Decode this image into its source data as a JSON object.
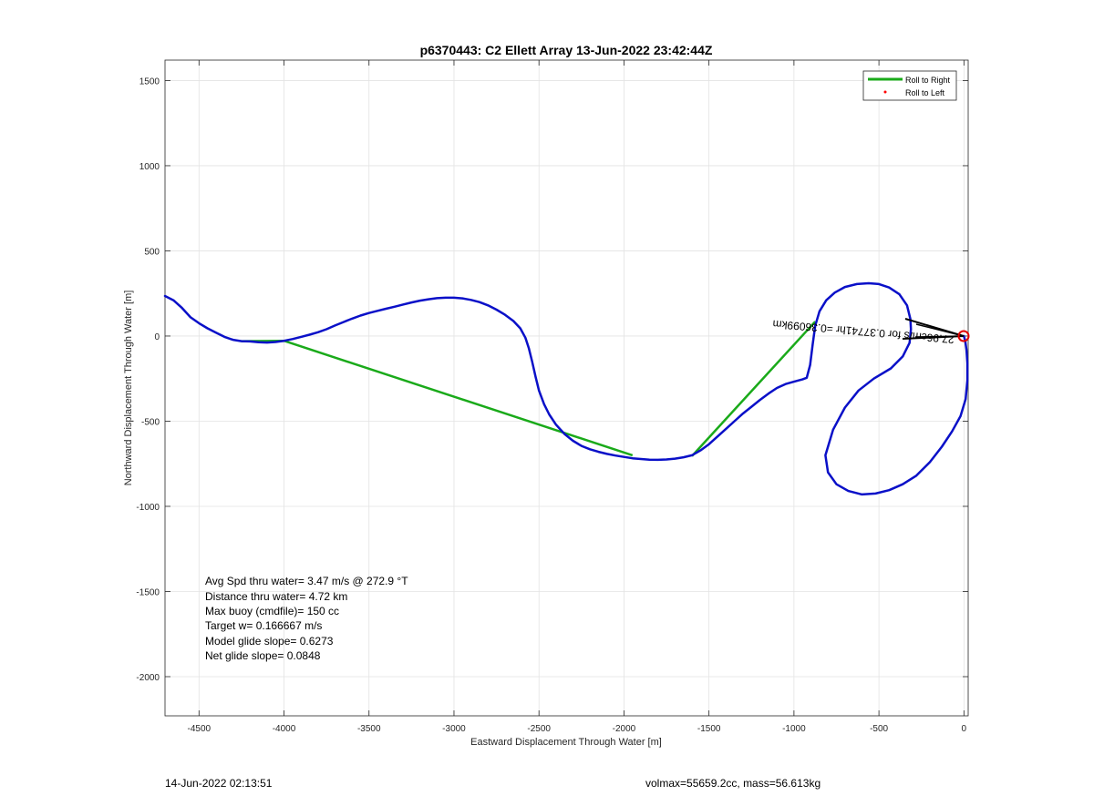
{
  "chart_data": {
    "type": "line",
    "title": "p6370443: C2 Ellett Array 13-Jun-2022 23:42:44Z",
    "xlabel": "Eastward Displacement Through Water [m]",
    "ylabel": "Northward Displacement Through Water [m]",
    "xlim": [
      -4700,
      25
    ],
    "ylim": [
      -2230,
      1620
    ],
    "xticks": [
      -4500,
      -4000,
      -3500,
      -3000,
      -2500,
      -2000,
      -1500,
      -1000,
      -500,
      0
    ],
    "yticks": [
      1500,
      1000,
      500,
      0,
      -500,
      -1000,
      -1500,
      -2000
    ],
    "grid": true,
    "legend_position": "top-right",
    "legend": [
      {
        "label": "Roll to Right",
        "color": "#1aaa1a",
        "marker": "line"
      },
      {
        "label": "Roll to Left",
        "color": "#ff0000",
        "marker": "dot"
      }
    ],
    "series": [
      {
        "color": "#0a10c8",
        "points": [
          [
            -4700,
            235
          ],
          [
            -4650,
            210
          ],
          [
            -4600,
            165
          ],
          [
            -4550,
            110
          ],
          [
            -4500,
            75
          ],
          [
            -4450,
            45
          ],
          [
            -4400,
            20
          ],
          [
            -4350,
            -5
          ],
          [
            -4300,
            -22
          ],
          [
            -4250,
            -30
          ],
          [
            -4200,
            -32
          ],
          [
            -4150,
            -36
          ],
          [
            -4100,
            -38
          ],
          [
            -4050,
            -35
          ],
          [
            -4000,
            -28
          ],
          [
            -3950,
            -18
          ],
          [
            -3900,
            -5
          ],
          [
            -3850,
            8
          ],
          [
            -3800,
            22
          ],
          [
            -3750,
            40
          ],
          [
            -3700,
            62
          ],
          [
            -3650,
            82
          ],
          [
            -3600,
            102
          ],
          [
            -3550,
            120
          ],
          [
            -3500,
            135
          ],
          [
            -3450,
            148
          ],
          [
            -3400,
            160
          ],
          [
            -3350,
            172
          ],
          [
            -3300,
            185
          ],
          [
            -3250,
            197
          ],
          [
            -3200,
            208
          ],
          [
            -3150,
            216
          ],
          [
            -3100,
            222
          ],
          [
            -3050,
            225
          ],
          [
            -3000,
            225
          ],
          [
            -2950,
            221
          ],
          [
            -2900,
            212
          ],
          [
            -2850,
            199
          ],
          [
            -2800,
            180
          ],
          [
            -2750,
            155
          ],
          [
            -2700,
            125
          ],
          [
            -2650,
            88
          ],
          [
            -2610,
            45
          ],
          [
            -2580,
            -10
          ],
          [
            -2560,
            -70
          ],
          [
            -2540,
            -150
          ],
          [
            -2520,
            -240
          ],
          [
            -2500,
            -320
          ],
          [
            -2470,
            -400
          ],
          [
            -2440,
            -460
          ],
          [
            -2400,
            -520
          ],
          [
            -2350,
            -575
          ],
          [
            -2300,
            -615
          ],
          [
            -2250,
            -645
          ],
          [
            -2200,
            -665
          ],
          [
            -2150,
            -680
          ],
          [
            -2100,
            -692
          ],
          [
            -2050,
            -702
          ],
          [
            -2000,
            -710
          ],
          [
            -1950,
            -718
          ],
          [
            -1900,
            -722
          ],
          [
            -1850,
            -726
          ],
          [
            -1800,
            -727
          ],
          [
            -1750,
            -725
          ],
          [
            -1700,
            -720
          ],
          [
            -1650,
            -712
          ],
          [
            -1600,
            -700
          ],
          [
            -1550,
            -672
          ],
          [
            -1500,
            -635
          ],
          [
            -1450,
            -590
          ],
          [
            -1400,
            -545
          ],
          [
            -1350,
            -500
          ],
          [
            -1300,
            -455
          ],
          [
            -1250,
            -415
          ],
          [
            -1200,
            -375
          ],
          [
            -1150,
            -338
          ],
          [
            -1100,
            -305
          ],
          [
            -1050,
            -282
          ],
          [
            -1000,
            -268
          ],
          [
            -950,
            -255
          ],
          [
            -925,
            -245
          ],
          [
            -905,
            -170
          ],
          [
            -890,
            -50
          ],
          [
            -875,
            60
          ],
          [
            -850,
            145
          ],
          [
            -810,
            210
          ],
          [
            -760,
            255
          ],
          [
            -700,
            288
          ],
          [
            -630,
            305
          ],
          [
            -560,
            310
          ],
          [
            -500,
            305
          ],
          [
            -440,
            285
          ],
          [
            -380,
            245
          ],
          [
            -335,
            180
          ],
          [
            -315,
            100
          ],
          [
            -312,
            40
          ],
          [
            -320,
            -40
          ],
          [
            -360,
            -120
          ],
          [
            -430,
            -190
          ],
          [
            -530,
            -250
          ],
          [
            -620,
            -320
          ],
          [
            -700,
            -420
          ],
          [
            -770,
            -550
          ],
          [
            -815,
            -700
          ],
          [
            -800,
            -800
          ],
          [
            -750,
            -870
          ],
          [
            -680,
            -910
          ],
          [
            -600,
            -930
          ],
          [
            -520,
            -925
          ],
          [
            -440,
            -905
          ],
          [
            -360,
            -870
          ],
          [
            -280,
            -820
          ],
          [
            -200,
            -740
          ],
          [
            -130,
            -650
          ],
          [
            -70,
            -560
          ],
          [
            -20,
            -470
          ],
          [
            10,
            -370
          ],
          [
            20,
            -260
          ],
          [
            20,
            -160
          ],
          [
            15,
            -80
          ],
          [
            8,
            -30
          ],
          [
            0,
            0
          ]
        ]
      },
      {
        "name": "Roll to Right",
        "color": "#1aaa1a",
        "segments": [
          [
            [
              -4250,
              -30
            ],
            [
              -4000,
              -28
            ],
            [
              -1950,
              -700
            ]
          ],
          [
            [
              -1600,
              -705
            ],
            [
              -875,
              85
            ]
          ]
        ]
      }
    ],
    "depth_avg_current_text": "27.96cm/s for 0.37741hr =0.36099km",
    "endpoint_marker": {
      "x": 0,
      "y": 0,
      "color": "#e00000"
    }
  },
  "annotations": {
    "lines": [
      "Avg Spd thru water=  3.47 m/s @ 272.9 °T",
      "Distance thru water=  4.72 km",
      "Max buoy (cmdfile)= 150 cc",
      "Target w= 0.166667 m/s",
      "Model glide slope= 0.6273",
      "Net glide slope= 0.0848"
    ]
  },
  "footer": {
    "timestamp": "14-Jun-2022 02:13:51",
    "vehicle_info": "volmax=55659.2cc, mass=56.613kg"
  }
}
